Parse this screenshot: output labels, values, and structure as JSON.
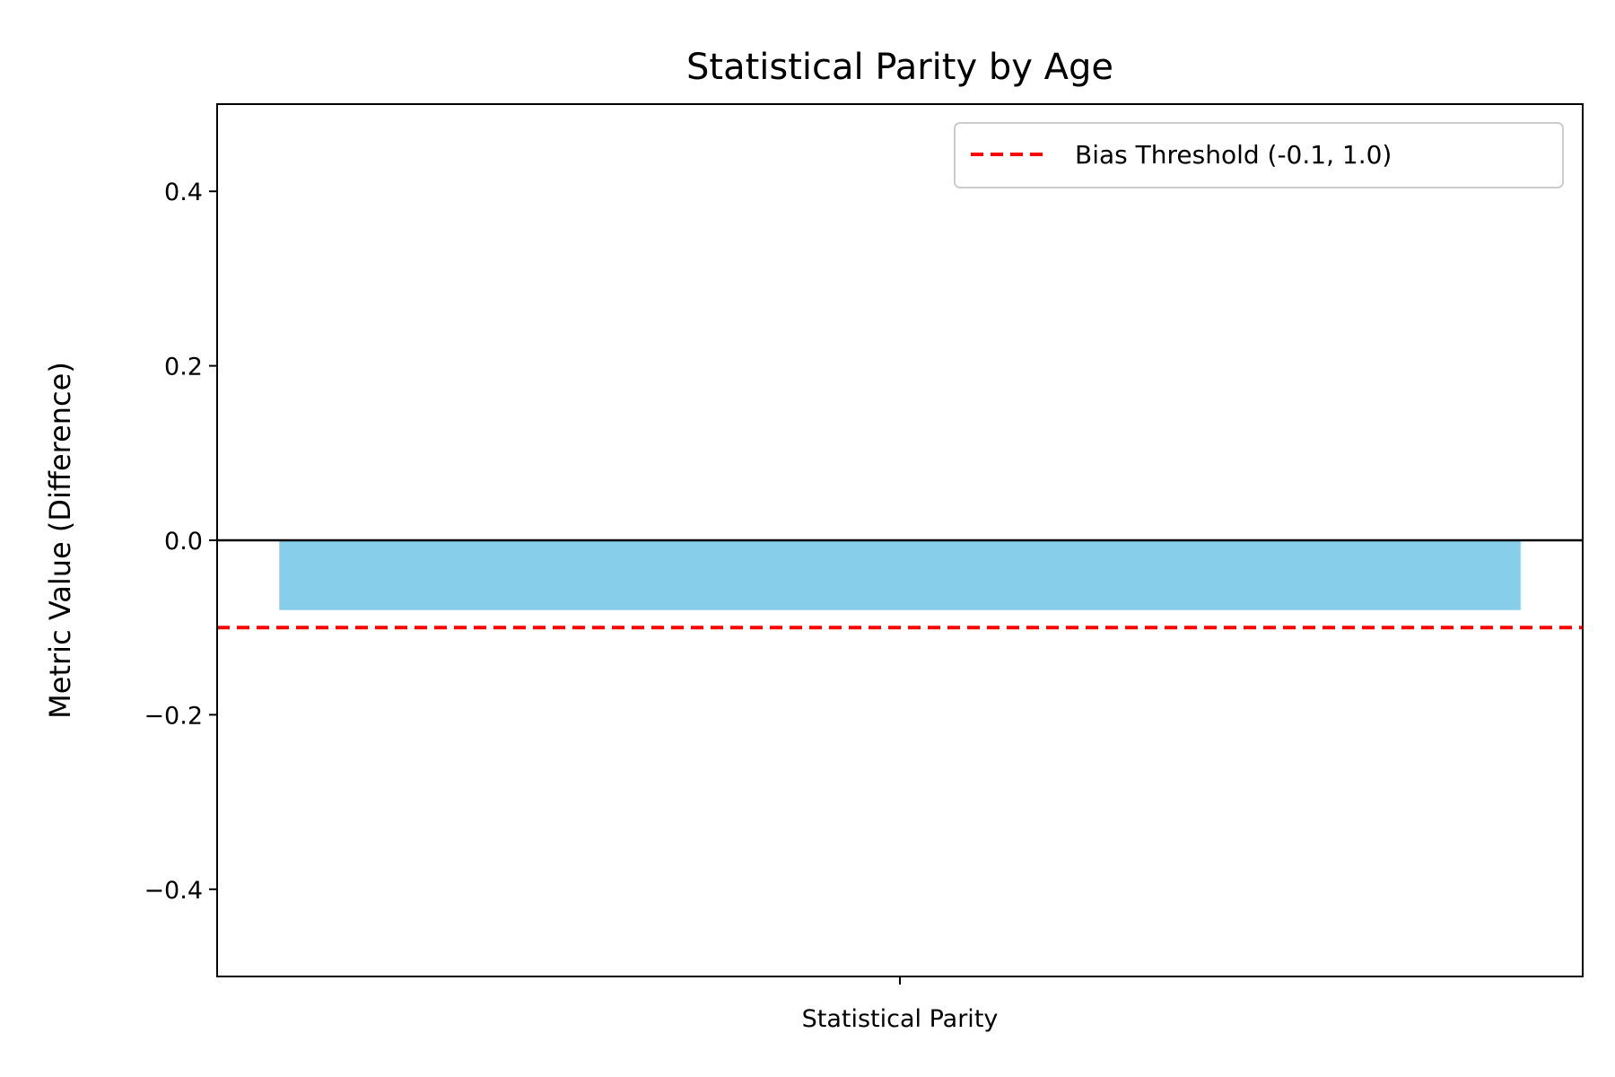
{
  "chart_data": {
    "type": "bar",
    "title": "Statistical Parity by Age",
    "xlabel": "",
    "ylabel": "Metric Value (Difference)",
    "categories": [
      "Statistical Parity"
    ],
    "values": [
      -0.08
    ],
    "ylim": [
      -0.5,
      0.5
    ],
    "yticks": [
      0.4,
      0.2,
      0.0,
      -0.2,
      -0.4
    ],
    "ytick_labels": [
      "0.4",
      "0.2",
      "0.0",
      "−0.2",
      "−0.4"
    ],
    "bar_color": "#87ceeb",
    "zero_line": {
      "value": 0.0,
      "color": "#000000"
    },
    "threshold": {
      "value": -0.1,
      "color": "#ff0000",
      "style": "dashed",
      "label": "Bias Threshold (-0.1, 1.0)"
    },
    "legend_position": "top-right",
    "grid": false
  }
}
